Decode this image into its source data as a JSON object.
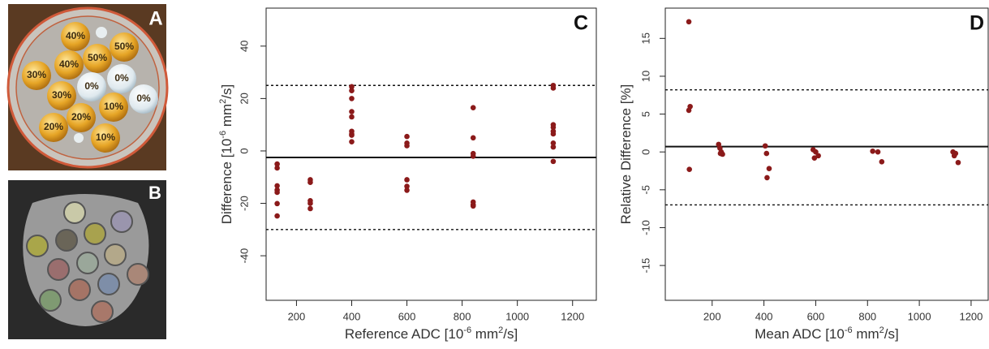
{
  "panels": {
    "photo": {
      "label": "A",
      "tubes": [
        "40%",
        "50%",
        "50%",
        "30%",
        "40%",
        "0%",
        "0%",
        "0%",
        "30%",
        "10%",
        "20%",
        "20%",
        "10%"
      ]
    },
    "mri": {
      "label": "B"
    }
  },
  "chart_data": [
    {
      "type": "scatter",
      "panel_label": "C",
      "ylabel": [
        "Difference [10",
        "-6",
        " mm",
        "2",
        "/s]"
      ],
      "xlabel": [
        "Reference ADC [10",
        "-6",
        " mm",
        "2",
        "/s]"
      ],
      "xlim": [
        90,
        1286
      ],
      "ylim": [
        -57,
        54.5
      ],
      "xticks": [
        200,
        400,
        600,
        800,
        1000,
        1200
      ],
      "yticks": [
        -40,
        -20,
        0,
        20,
        40
      ],
      "hlines": [
        {
          "value": -2.5,
          "style": "solid"
        },
        {
          "value": 25,
          "style": "dotted"
        },
        {
          "value": -30,
          "style": "dotted"
        }
      ],
      "series": [
        {
          "color": "#8b1a1a",
          "x": [
            130,
            130,
            130,
            130,
            130,
            130,
            130,
            250,
            250,
            250,
            250,
            250,
            400,
            400,
            400,
            400,
            400,
            400,
            400,
            400,
            400,
            600,
            600,
            600,
            600,
            600,
            600,
            840,
            840,
            840,
            840,
            840,
            840,
            840,
            1130,
            1130,
            1130,
            1130,
            1130,
            1130,
            1130,
            1130,
            1130
          ],
          "values": [
            -5,
            -6.5,
            -13.3,
            -14.9,
            -15.8,
            -20.1,
            -24.8,
            -11,
            -12,
            -19,
            -20,
            -22,
            24.5,
            23,
            20,
            15,
            13,
            7.5,
            6.5,
            6,
            3.5,
            5.5,
            3,
            2,
            -11,
            -13.5,
            -15,
            16.5,
            5,
            -1,
            -2,
            -19.5,
            -20.5,
            -21,
            25,
            24,
            10,
            9,
            7.5,
            6.5,
            3,
            1.5,
            -4
          ]
        }
      ]
    },
    {
      "type": "scatter",
      "panel_label": "D",
      "ylabel": [
        "Relative Difference [%]"
      ],
      "xlabel": [
        "Mean ADC [10",
        "-6",
        " mm",
        "2",
        "/s]"
      ],
      "xlim": [
        19,
        1266
      ],
      "ylim": [
        -19.6,
        19
      ],
      "xticks": [
        200,
        400,
        600,
        800,
        1000,
        1200
      ],
      "yticks": [
        -15,
        -10,
        -5,
        0,
        5,
        10,
        15
      ],
      "hlines": [
        {
          "value": 0.7,
          "style": "solid"
        },
        {
          "value": 8.2,
          "style": "dotted"
        },
        {
          "value": -7,
          "style": "dotted"
        }
      ],
      "series": [
        {
          "color": "#8b1a1a",
          "x": [
            110,
            115,
            110,
            112,
            225,
            230,
            235,
            232,
            240,
            405,
            410,
            420,
            412,
            590,
            600,
            610,
            595,
            820,
            840,
            855,
            1130,
            1140,
            1135,
            1150
          ],
          "values": [
            17.2,
            6,
            5.5,
            -2.3,
            1,
            0.5,
            0,
            -0.2,
            -0.3,
            0.8,
            -0.2,
            -2.2,
            -3.4,
            0.3,
            0,
            -0.5,
            -0.8,
            0.1,
            0,
            -1.3,
            0,
            -0.2,
            -0.5,
            -1.4
          ]
        }
      ]
    }
  ]
}
